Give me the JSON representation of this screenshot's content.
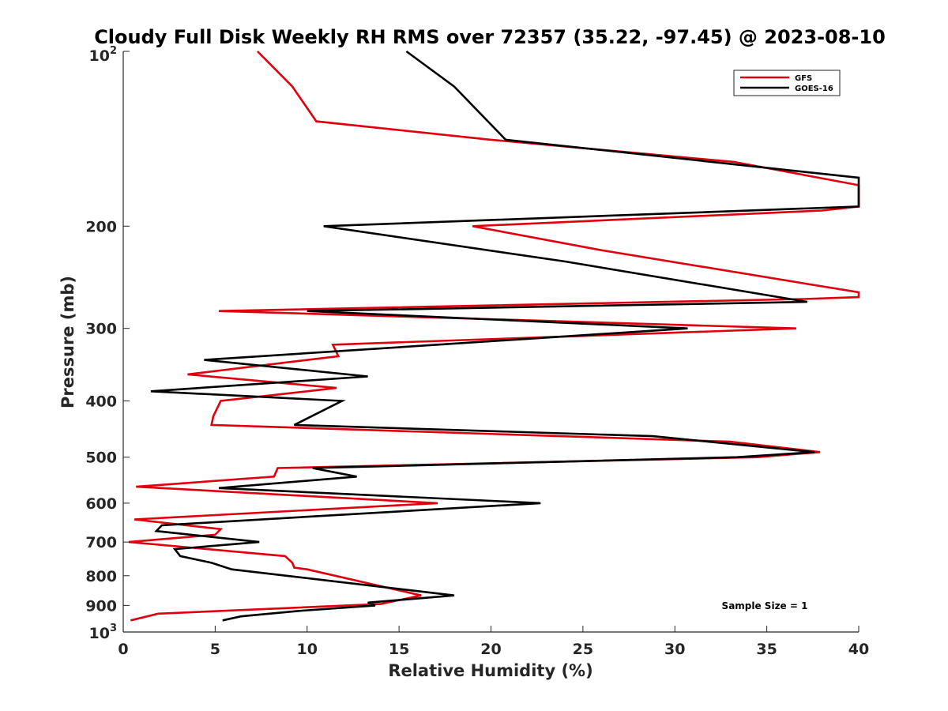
{
  "chart_data": {
    "type": "line",
    "title": "Cloudy Full Disk Weekly RH RMS over 72357 (35.22, -97.45) @ 2023-08-10",
    "xlabel": "Relative Humidity (%)",
    "ylabel": "Pressure (mb)",
    "xlim": [
      0,
      40
    ],
    "ylim": [
      100,
      1000
    ],
    "yscale": "log",
    "y_reversed": true,
    "x_ticks": [
      "0",
      "5",
      "10",
      "15",
      "20",
      "25",
      "30",
      "35",
      "40"
    ],
    "y_ticks": [
      {
        "value": 200,
        "label": "200"
      },
      {
        "value": 300,
        "label": "300"
      },
      {
        "value": 400,
        "label": "400"
      },
      {
        "value": 500,
        "label": "500"
      },
      {
        "value": 600,
        "label": "600"
      },
      {
        "value": 700,
        "label": "700"
      },
      {
        "value": 800,
        "label": "800"
      },
      {
        "value": 900,
        "label": "900"
      }
    ],
    "y_end_labels": {
      "top_base": "10",
      "top_exp": "2",
      "bottom_base": "10",
      "bottom_exp": "3"
    },
    "grid": false,
    "legend_position": "top-right",
    "annotation": "Sample Size = 1",
    "series": [
      {
        "name": "GFS",
        "color": "#e0000d",
        "points": [
          [
            7.3,
            100
          ],
          [
            9.2,
            115
          ],
          [
            10.5,
            132
          ],
          [
            20,
            142
          ],
          [
            33.2,
            155
          ],
          [
            40,
            170
          ],
          [
            40,
            185
          ],
          [
            38,
            188
          ],
          [
            19,
            200
          ],
          [
            26,
            220
          ],
          [
            40,
            260
          ],
          [
            40,
            265
          ],
          [
            37,
            267
          ],
          [
            5.2,
            280
          ],
          [
            36.6,
            300
          ],
          [
            11.4,
            320
          ],
          [
            11.7,
            335
          ],
          [
            3.5,
            360
          ],
          [
            11.6,
            380
          ],
          [
            5.3,
            400
          ],
          [
            4.9,
            425
          ],
          [
            4.8,
            440
          ],
          [
            33,
            470
          ],
          [
            37.9,
            490
          ],
          [
            34.5,
            500
          ],
          [
            8.4,
            522
          ],
          [
            8.2,
            540
          ],
          [
            0.7,
            562
          ],
          [
            17.1,
            600
          ],
          [
            0.6,
            640
          ],
          [
            5.3,
            665
          ],
          [
            5,
            680
          ],
          [
            0.3,
            700
          ],
          [
            8.8,
            740
          ],
          [
            9.2,
            760
          ],
          [
            9.3,
            775
          ],
          [
            10,
            780
          ],
          [
            16.2,
            865
          ],
          [
            14,
            895
          ],
          [
            1.9,
            930
          ],
          [
            0.4,
            955
          ]
        ]
      },
      {
        "name": "GOES-16",
        "color": "#000000",
        "points": [
          [
            15.4,
            100
          ],
          [
            18,
            115
          ],
          [
            20.8,
            142
          ],
          [
            40,
            165
          ],
          [
            40,
            185
          ],
          [
            10.9,
            200
          ],
          [
            24,
            230
          ],
          [
            37.2,
            270
          ],
          [
            10,
            280
          ],
          [
            30.7,
            300
          ],
          [
            4.4,
            340
          ],
          [
            13.3,
            363
          ],
          [
            1.5,
            385
          ],
          [
            11.9,
            400
          ],
          [
            9.3,
            440
          ],
          [
            28.8,
            460
          ],
          [
            37.6,
            490
          ],
          [
            33.4,
            500
          ],
          [
            10.3,
            522
          ],
          [
            12.7,
            540
          ],
          [
            5.2,
            565
          ],
          [
            22.7,
            600
          ],
          [
            2.1,
            655
          ],
          [
            1.8,
            670
          ],
          [
            7.4,
            700
          ],
          [
            2.8,
            720
          ],
          [
            3.1,
            740
          ],
          [
            4.8,
            760
          ],
          [
            5.9,
            780
          ],
          [
            18,
            865
          ],
          [
            13.3,
            890
          ],
          [
            13.7,
            900
          ],
          [
            9.5,
            920
          ],
          [
            6.4,
            940
          ],
          [
            5.4,
            955
          ]
        ]
      }
    ]
  }
}
